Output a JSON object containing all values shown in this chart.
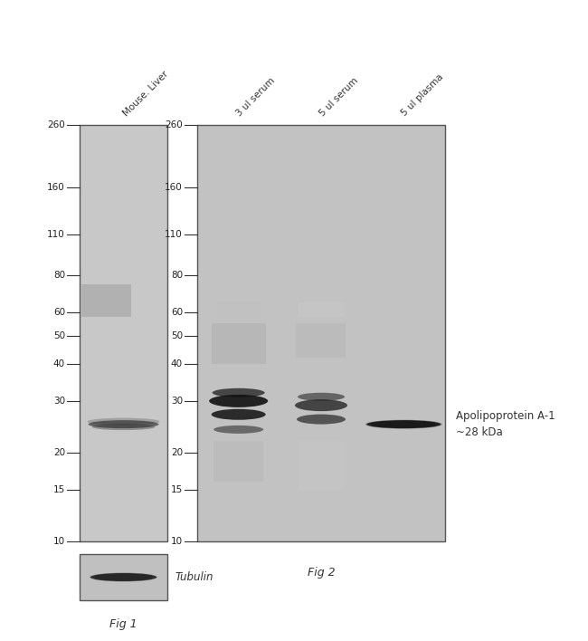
{
  "background_color": "#ffffff",
  "panel1_color": "#c8c8c8",
  "panel2_color": "#c2c2c2",
  "tubulin_panel_color": "#c0c0c0",
  "mw_vals": [
    260,
    160,
    110,
    80,
    60,
    50,
    40,
    30,
    20,
    15,
    10
  ],
  "tick_fontsize": 7.5,
  "label_fontsize": 8.5,
  "lane_label_fontsize": 7.5,
  "annotation_text": "Apolipoprotein A-1\n~28 kDa",
  "fig1_label": "Fig 1",
  "fig2_label": "Fig 2",
  "tubulin_label": "Tubulin",
  "lane1_label": "Mouse. Liver",
  "lane2_labels": [
    "3 ul serum",
    "5 ul serum",
    "5 ul plasma"
  ]
}
